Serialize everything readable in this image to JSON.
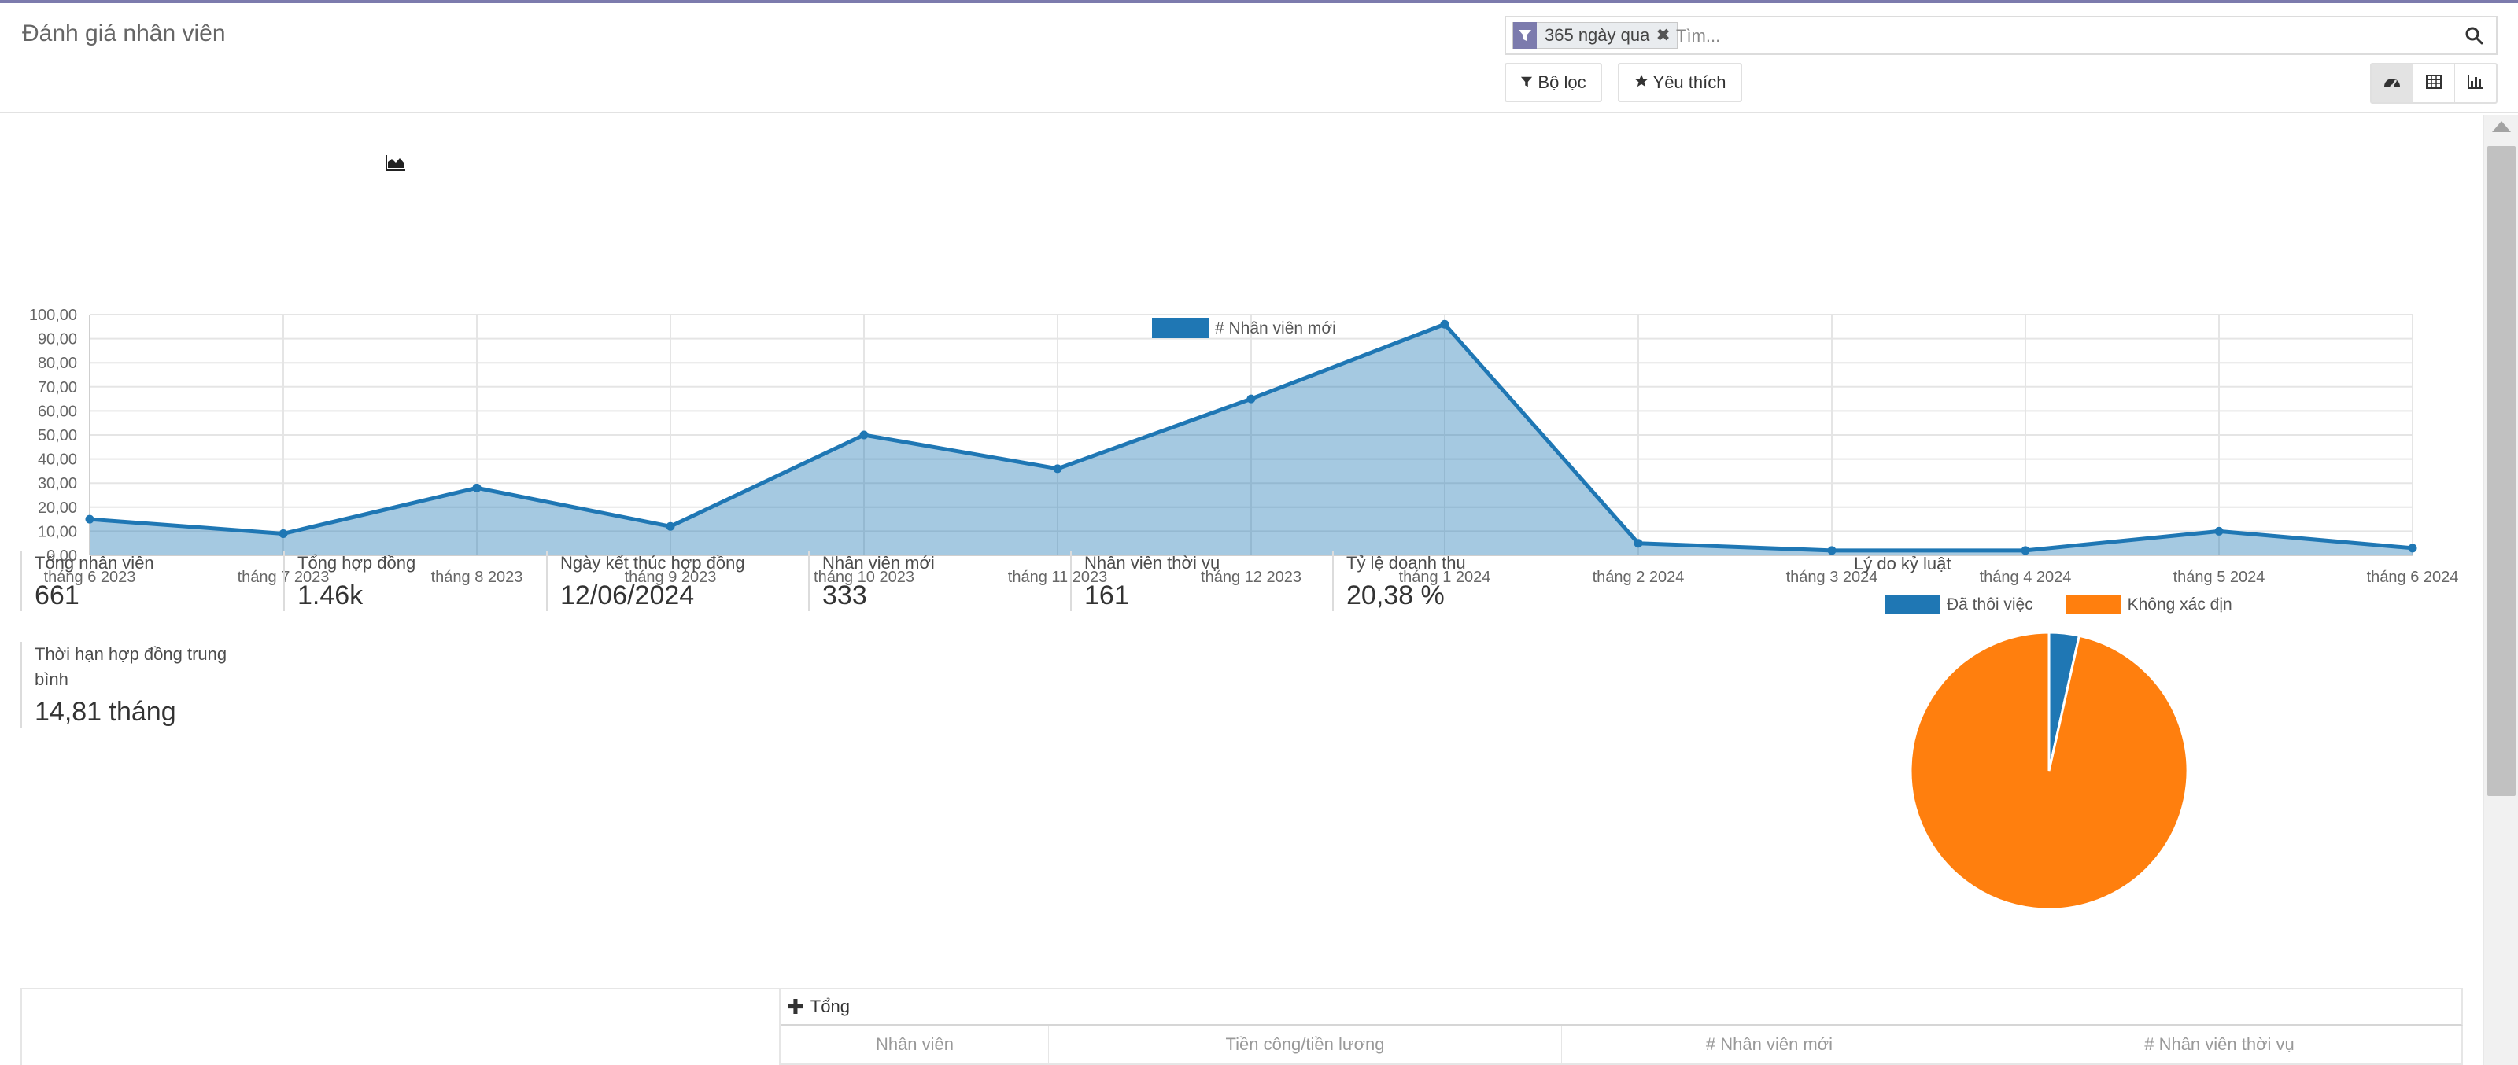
{
  "page": {
    "title": "Đánh giá nhân viên"
  },
  "search": {
    "facet_label": "365 ngày qua",
    "placeholder": "Tìm..."
  },
  "buttons": {
    "filters": "Bộ lọc",
    "favorites": "Yêu thích"
  },
  "views": [
    "dashboard",
    "pivot",
    "graph"
  ],
  "colors": {
    "accent": "#7c7bad",
    "series_blue": "#1f77b4",
    "series_orange": "#ff7f0e"
  },
  "chart_data": [
    {
      "type": "area",
      "title": "",
      "series": [
        {
          "name": "# Nhân viên mới",
          "color": "#1f77b4",
          "values": [
            15,
            9,
            28,
            12,
            50,
            36,
            65,
            96,
            5,
            2,
            2,
            10,
            3
          ]
        }
      ],
      "categories": [
        "tháng 6 2023",
        "tháng 7 2023",
        "tháng 8 2023",
        "tháng 9 2023",
        "tháng 10 2023",
        "tháng 11 2023",
        "tháng 12 2023",
        "tháng 1 2024",
        "tháng 2 2024",
        "tháng 3 2024",
        "tháng 4 2024",
        "tháng 5 2024",
        "tháng 6 2024"
      ],
      "yticks": [
        "0,00",
        "10,00",
        "20,00",
        "30,00",
        "40,00",
        "50,00",
        "60,00",
        "70,00",
        "80,00",
        "90,00",
        "100,00"
      ],
      "ylim": [
        0,
        100
      ],
      "grid": true,
      "legend": "top"
    },
    {
      "type": "pie",
      "title": "Lý do kỷ luật",
      "series": [
        {
          "name": "Đã thôi việc",
          "color": "#1f77b4",
          "value": 3.5
        },
        {
          "name": "Không xác định",
          "color": "#ff7f0e",
          "value": 96.5
        }
      ],
      "legend": "top"
    }
  ],
  "stats": [
    {
      "label": "Tổng nhân viên",
      "value": "661"
    },
    {
      "label": "Tổng hợp đồng",
      "value": "1.46k"
    },
    {
      "label": "Ngày kết thúc hợp đồng",
      "value": "12/06/2024"
    },
    {
      "label": "Nhân viên mới",
      "value": "333"
    },
    {
      "label": "Nhân viên thời vụ",
      "value": "161"
    },
    {
      "label": "Tỷ lệ doanh thu",
      "value": "20,38 %"
    },
    {
      "label": "Thời hạn hợp đồng trung bình",
      "value": "14,81 tháng"
    }
  ],
  "pivot": {
    "header": "Tổng",
    "columns": [
      "Nhân viên",
      "Tiền công/tiền lương",
      "# Nhân viên mới",
      "# Nhân viên thời vụ"
    ]
  }
}
